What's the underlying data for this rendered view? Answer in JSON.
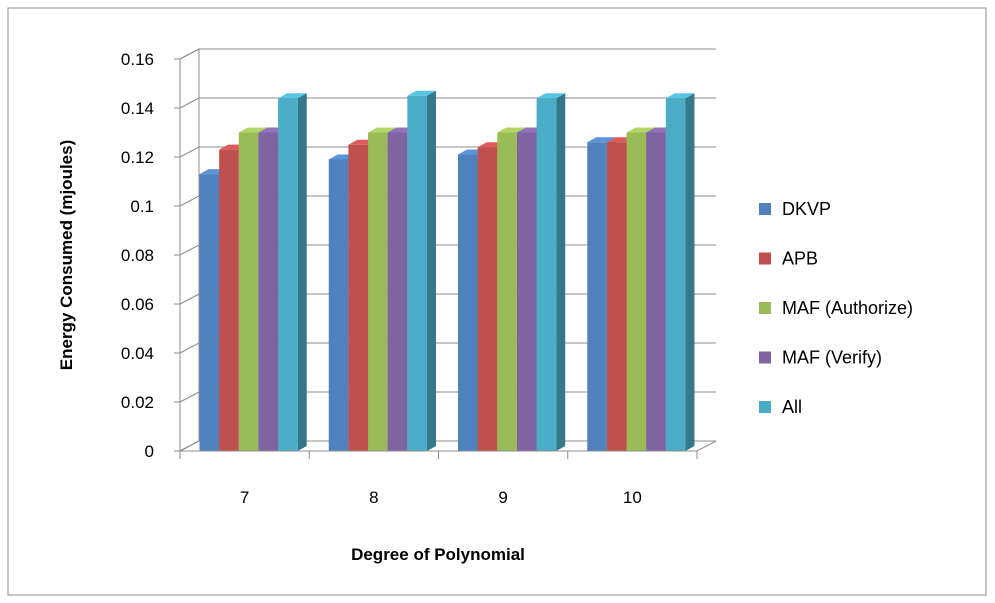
{
  "chart_data": {
    "type": "bar",
    "style": "3d-clustered-column",
    "categories": [
      "7",
      "8",
      "9",
      "10"
    ],
    "series": [
      {
        "name": "DKVP",
        "color": "#4f81bd",
        "values": [
          0.113,
          0.119,
          0.121,
          0.126
        ]
      },
      {
        "name": "APB",
        "color": "#c0504d",
        "values": [
          0.123,
          0.125,
          0.124,
          0.126
        ]
      },
      {
        "name": "MAF (Authorize)",
        "color": "#9bbb59",
        "values": [
          0.13,
          0.13,
          0.13,
          0.13
        ]
      },
      {
        "name": "MAF (Verify)",
        "color": "#8064a2",
        "values": [
          0.13,
          0.13,
          0.13,
          0.13
        ]
      },
      {
        "name": "All",
        "color": "#4bacc6",
        "values": [
          0.144,
          0.145,
          0.144,
          0.144
        ]
      }
    ],
    "yticks": [
      "0",
      "0.02",
      "0.04",
      "0.06",
      "0.08",
      "0.1",
      "0.12",
      "0.14",
      "0.16"
    ],
    "ylim": [
      0,
      0.16
    ],
    "xlabel": "Degree of Polynomial",
    "ylabel": "Energy Consumed (mjoules)",
    "grid": true,
    "legend_position": "right"
  }
}
